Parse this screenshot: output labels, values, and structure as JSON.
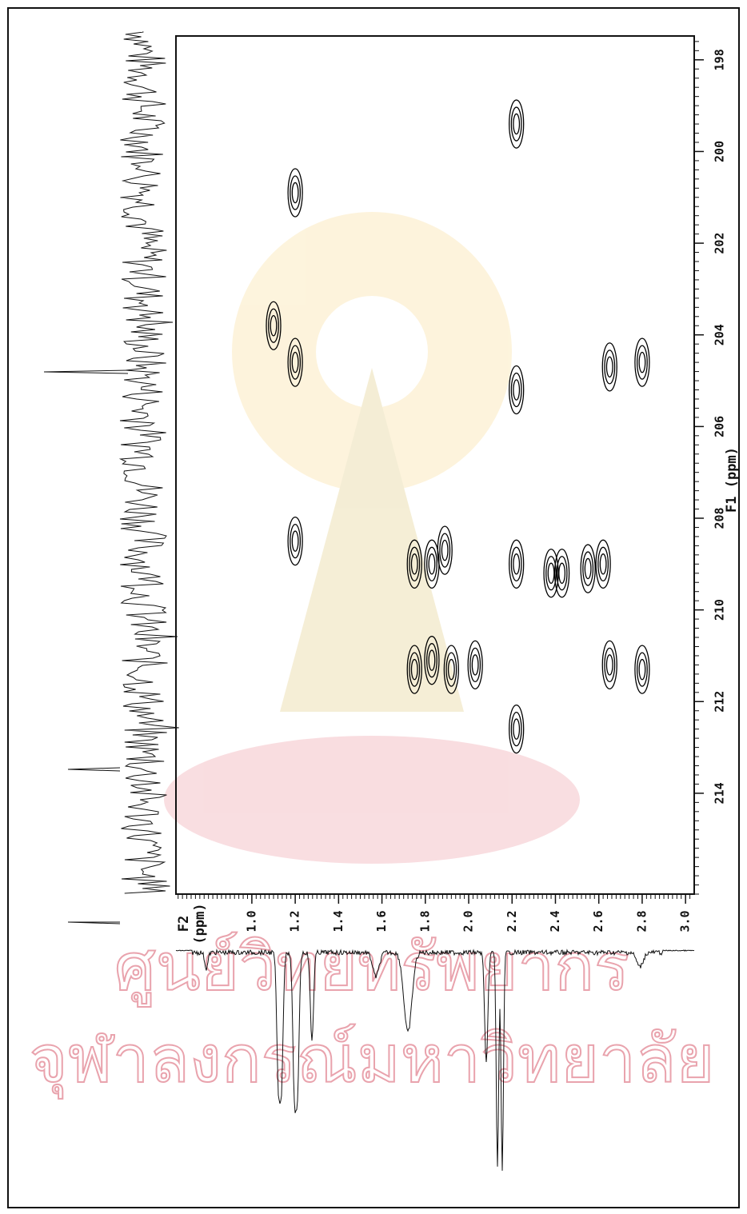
{
  "chart_data": {
    "type": "contour",
    "x_label": "F2\n(ppm)",
    "y_label": "F1 (ppm)",
    "xlim": [
      0.65,
      3.04
    ],
    "xticks": [
      {
        "value": 1,
        "label": "1.0"
      },
      1.2,
      1.4,
      1.6,
      1.8,
      {
        "value": 2,
        "label": "2.0"
      },
      2.2,
      2.4,
      2.6,
      2.8,
      {
        "value": 3,
        "label": "3.0"
      }
    ],
    "ylim": [
      197.48,
      216.2
    ],
    "yticks": [
      198,
      200,
      202,
      204,
      206,
      208,
      210,
      212,
      214
    ],
    "color": "#000000",
    "x": [
      2.22,
      1.2,
      1.1,
      1.2,
      1.2,
      1.75,
      1.83,
      1.89,
      2.22,
      2.22,
      2.22,
      2.38,
      2.43,
      2.55,
      2.62,
      2.65,
      2.8,
      1.75,
      1.83,
      1.92,
      2.03,
      2.65,
      2.8
    ],
    "values": [
      199.4,
      200.9,
      203.8,
      204.6,
      208.5,
      209.0,
      209.0,
      208.7,
      209.0,
      205.2,
      212.6,
      209.2,
      209.2,
      209.1,
      209.0,
      204.7,
      204.6,
      211.3,
      211.1,
      211.3,
      211.2,
      211.2,
      211.3
    ],
    "watermark": [
      "ศูนย์วิทยทรัพยากร",
      "จุฬาลงกรณ์มหาวิทยาลัย"
    ]
  }
}
